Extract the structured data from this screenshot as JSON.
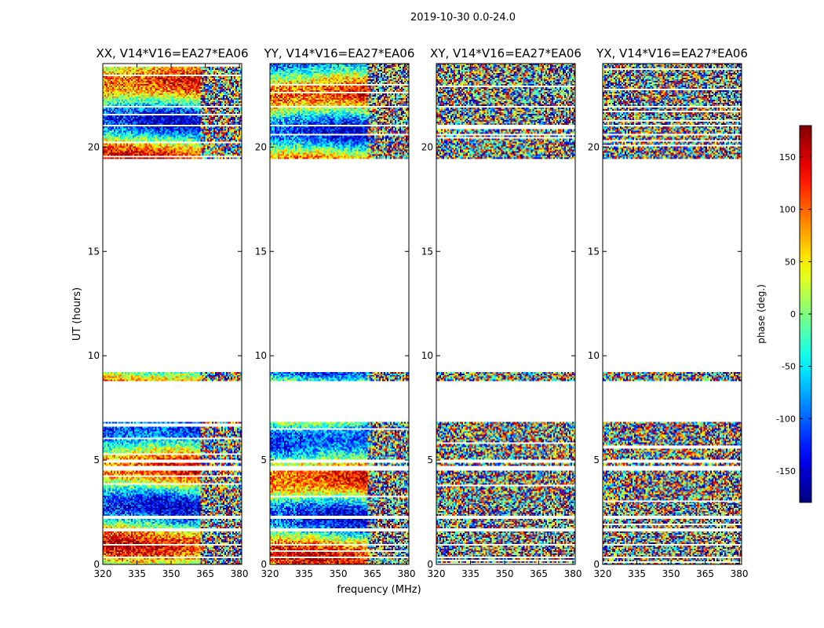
{
  "figure": {
    "suptitle": "2019-10-30 0.0-24.0",
    "xlabel": "frequency (MHz)",
    "ylabel": "UT (hours)"
  },
  "chart_data": {
    "type": "heatmap",
    "x_ticks": [
      320,
      335,
      350,
      365,
      380
    ],
    "y_ticks": [
      0,
      5,
      10,
      15,
      20
    ],
    "xlim": [
      320,
      381
    ],
    "ylim": [
      0,
      24
    ],
    "data_bands": [
      {
        "start": 0.0,
        "end": 0.3
      },
      {
        "start": 0.4,
        "end": 0.9
      },
      {
        "start": 1.0,
        "end": 1.6
      },
      {
        "start": 1.7,
        "end": 2.2
      },
      {
        "start": 2.3,
        "end": 4.5
      },
      {
        "start": 4.7,
        "end": 4.9
      },
      {
        "start": 5.0,
        "end": 6.8
      },
      {
        "start": 8.8,
        "end": 9.2
      },
      {
        "start": 19.4,
        "end": 21.0
      },
      {
        "start": 21.1,
        "end": 21.9
      },
      {
        "start": 22.0,
        "end": 24.0
      }
    ],
    "panels": [
      {
        "title": "XX, V14*V16=EA27*EA06",
        "coherent": true
      },
      {
        "title": "YY, V14*V16=EA27*EA06",
        "coherent": true
      },
      {
        "title": "XY, V14*V16=EA27*EA06",
        "coherent": false
      },
      {
        "title": "YX, V14*V16=EA27*EA06",
        "coherent": false
      }
    ],
    "colorbar": {
      "label": "phase (deg.)",
      "range": [
        -180,
        180
      ],
      "ticks": [
        150,
        100,
        50,
        0,
        -50,
        -100,
        -150
      ],
      "colormap": "jet"
    }
  }
}
